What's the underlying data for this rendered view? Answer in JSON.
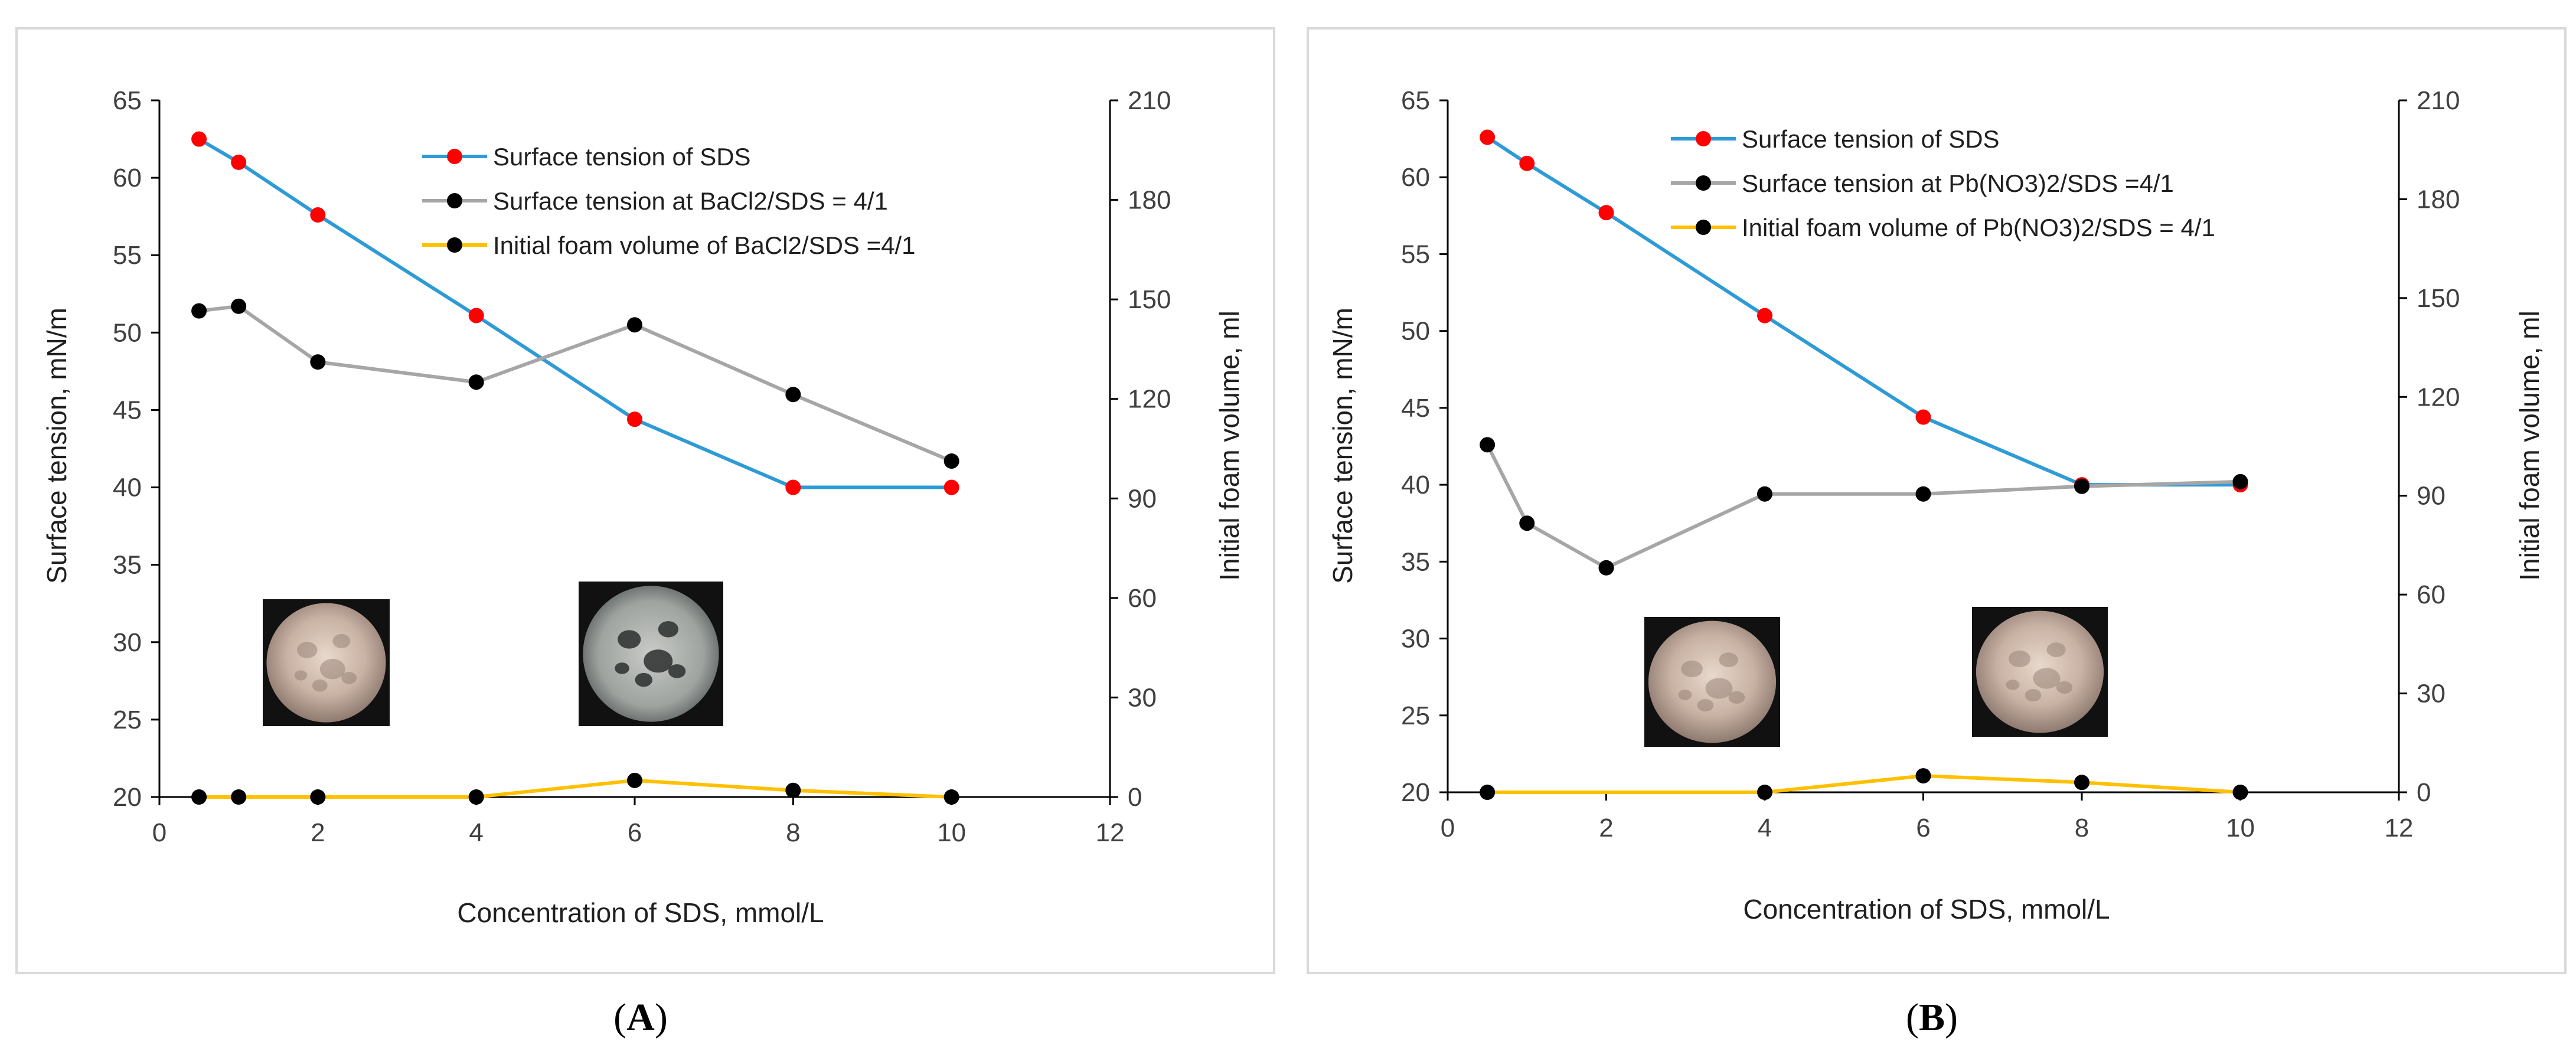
{
  "colors": {
    "sds": "#2E9BD6",
    "gray_series": "#A6A6A6",
    "yellow_series": "#FFC000",
    "red_marker": "#FF0000",
    "black_marker": "#000000",
    "axis": "#000000",
    "frame": "#D9D9D9"
  },
  "chart_data": [
    {
      "panel_label": "A",
      "type": "line",
      "xlabel": "Concentration of SDS, mmol/L",
      "ylabel": "Surface tension, mN/m",
      "y2label": "Initial foam volume, ml",
      "xlim": [
        0,
        12
      ],
      "ylim": [
        20,
        65
      ],
      "y2lim": [
        0,
        210
      ],
      "x_ticks": [
        0,
        2,
        4,
        6,
        8,
        10,
        12
      ],
      "y_ticks": [
        20,
        25,
        30,
        35,
        40,
        45,
        50,
        55,
        60,
        65
      ],
      "y2_ticks": [
        0,
        30,
        60,
        90,
        120,
        150,
        180,
        210
      ],
      "grid": false,
      "legend_position": "top-center",
      "series": [
        {
          "name": "Surface tension of SDS",
          "axis": "left",
          "color": "#2E9BD6",
          "marker": "#FF0000",
          "x": [
            0.5,
            1,
            2,
            4,
            6,
            8,
            10
          ],
          "y": [
            62.5,
            61.0,
            57.6,
            51.1,
            44.4,
            40.0,
            40.0
          ]
        },
        {
          "name": "Surface tension at BaCl2/SDS = 4/1",
          "axis": "left",
          "color": "#A6A6A6",
          "marker": "#000000",
          "x": [
            0.5,
            1,
            2,
            4,
            6,
            8,
            10
          ],
          "y": [
            51.4,
            51.7,
            48.1,
            46.8,
            50.5,
            46.0,
            41.7
          ]
        },
        {
          "name": "Initial foam volume of BaCl2/SDS =4/1",
          "axis": "right",
          "color": "#FFC000",
          "marker": "#000000",
          "x": [
            0.5,
            1,
            2,
            4,
            6,
            8,
            10
          ],
          "y": [
            0,
            0,
            0,
            0,
            5,
            2,
            0
          ]
        }
      ],
      "insets": [
        {
          "name": "micrograph-1",
          "near_x": 1.5,
          "style": "light"
        },
        {
          "name": "micrograph-2",
          "near_x": 6.2,
          "style": "dark"
        }
      ]
    },
    {
      "panel_label": "B",
      "type": "line",
      "xlabel": "Concentration of SDS, mmol/L",
      "ylabel": "Surface tension, mN/m",
      "y2label": "Initial foam volume, ml",
      "xlim": [
        0,
        12
      ],
      "ylim": [
        20,
        65
      ],
      "y2lim": [
        0,
        210
      ],
      "x_ticks": [
        0,
        2,
        4,
        6,
        8,
        10,
        12
      ],
      "y_ticks": [
        20,
        25,
        30,
        35,
        40,
        45,
        50,
        55,
        60,
        65
      ],
      "y2_ticks": [
        0,
        30,
        60,
        90,
        120,
        150,
        180,
        210
      ],
      "grid": false,
      "legend_position": "top-center",
      "series": [
        {
          "name": "Surface tension of SDS",
          "axis": "left",
          "color": "#2E9BD6",
          "marker": "#FF0000",
          "x": [
            0.5,
            1,
            2,
            4,
            6,
            8,
            10
          ],
          "y": [
            62.6,
            60.9,
            57.7,
            51.0,
            44.4,
            40.0,
            40.0
          ]
        },
        {
          "name": "Surface tension at Pb(NO3)2/SDS =4/1",
          "axis": "left",
          "color": "#A6A6A6",
          "marker": "#000000",
          "x": [
            0.5,
            1,
            2,
            4,
            6,
            8,
            10
          ],
          "y": [
            42.6,
            37.5,
            34.6,
            39.4,
            39.4,
            39.9,
            40.2
          ]
        },
        {
          "name": "Initial foam volume of Pb(NO3)2/SDS = 4/1",
          "axis": "right",
          "color": "#FFC000",
          "marker": "#000000",
          "x": [
            0.5,
            4,
            6,
            8,
            10
          ],
          "y": [
            0,
            0,
            5,
            3,
            0
          ]
        }
      ],
      "insets": [
        {
          "name": "micrograph-1",
          "near_x": 3.5,
          "style": "light"
        },
        {
          "name": "micrograph-2",
          "near_x": 7.5,
          "style": "light"
        }
      ]
    }
  ]
}
